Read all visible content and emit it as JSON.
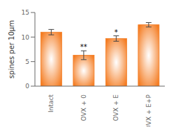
{
  "chart_data": {
    "type": "bar",
    "categories": [
      "Intact",
      "OVX + 0",
      "OVX + E",
      "OVX + E+P"
    ],
    "values": [
      11.0,
      6.3,
      9.7,
      12.5
    ],
    "errors": [
      0.55,
      0.9,
      0.55,
      0.45
    ],
    "annotations": [
      {
        "x": "OVX + 0",
        "text": "**"
      },
      {
        "x": "OVX + E",
        "text": "*"
      }
    ],
    "ylabel": "spines per 10μm",
    "ylim": [
      0,
      15
    ],
    "yticks": [
      0,
      5,
      10,
      15
    ],
    "color": "#F47B20"
  }
}
